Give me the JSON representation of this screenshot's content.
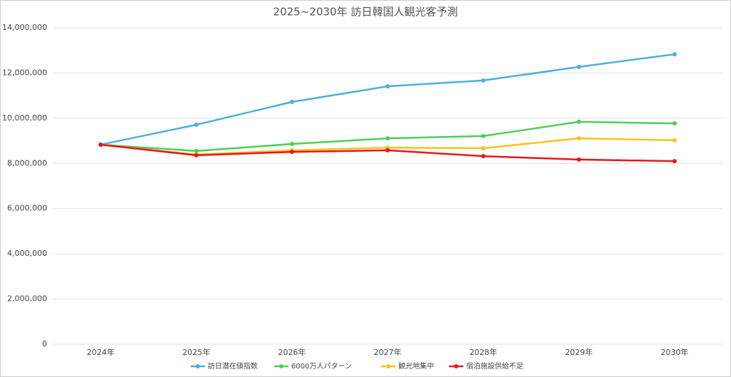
{
  "chart_data": {
    "type": "line",
    "title": "2025~2030年 訪日韓国人観光客予測",
    "categories": [
      "2024年",
      "2025年",
      "2026年",
      "2027年",
      "2028年",
      "2029年",
      "2030年"
    ],
    "series": [
      {
        "name": "訪日潜在値指数",
        "color": "#4eaee0",
        "values": [
          8830000,
          9710000,
          10720000,
          11410000,
          11670000,
          12270000,
          12830000
        ]
      },
      {
        "name": "6000万人パターン",
        "color": "#4ccf5a",
        "values": [
          8830000,
          8550000,
          8860000,
          9110000,
          9210000,
          9840000,
          9770000
        ]
      },
      {
        "name": "観光地集中",
        "color": "#f9c21a",
        "values": [
          8830000,
          8390000,
          8580000,
          8700000,
          8670000,
          9110000,
          9020000
        ]
      },
      {
        "name": "宿泊施設供給不足",
        "color": "#e8151b",
        "values": [
          8830000,
          8360000,
          8510000,
          8580000,
          8320000,
          8170000,
          8100000
        ]
      }
    ],
    "ylim": [
      0,
      14000000
    ],
    "yticks": [
      0,
      {
        "value": 2000000,
        "label": "2,000,000"
      },
      {
        "value": 4000000,
        "label": "4,000,000"
      },
      {
        "value": 6000000,
        "label": "6,000,000"
      },
      {
        "value": 8000000,
        "label": "8,000,000"
      },
      {
        "value": 10000000,
        "label": "10,000,000"
      },
      {
        "value": 12000000,
        "label": "12,000,000"
      },
      {
        "value": 14000000,
        "label": "14,000,000"
      }
    ],
    "grid": true,
    "legend": "bottom"
  }
}
